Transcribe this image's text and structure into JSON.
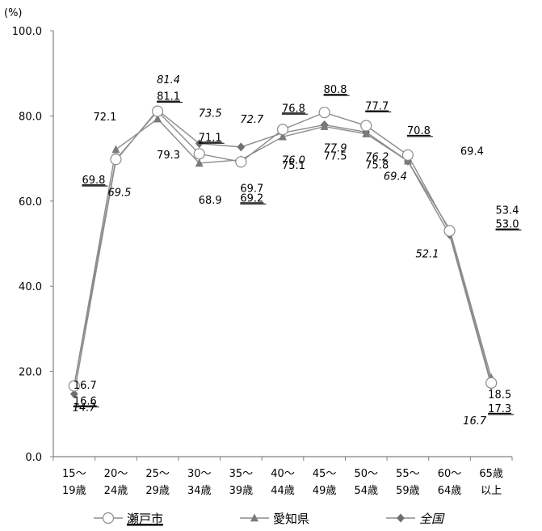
{
  "chart_data": {
    "type": "line",
    "unit_label": "(%)",
    "categories": [
      [
        "15～",
        "19歳"
      ],
      [
        "20～",
        "24歳"
      ],
      [
        "25～",
        "29歳"
      ],
      [
        "30～",
        "34歳"
      ],
      [
        "35～",
        "39歳"
      ],
      [
        "40～",
        "44歳"
      ],
      [
        "45～",
        "49歳"
      ],
      [
        "50～",
        "54歳"
      ],
      [
        "55～",
        "59歳"
      ],
      [
        "60～",
        "64歳"
      ],
      [
        "65歳",
        "以上"
      ]
    ],
    "ylim": [
      0,
      100
    ],
    "yticks": [
      "0.0",
      "20.0",
      "40.0",
      "60.0",
      "80.0",
      "100.0"
    ],
    "grid": false,
    "legend_position": "bottom",
    "series": [
      {
        "name": "瀬戸市",
        "marker": "circle",
        "color": "#8c8c8c",
        "label_style": "underline",
        "values": [
          16.6,
          69.8,
          81.1,
          71.1,
          69.2,
          76.8,
          80.8,
          77.7,
          70.8,
          53.0,
          17.3
        ],
        "labels": [
          "16.6",
          "69.8",
          "81.1",
          "71.1",
          "69.2",
          "76.8",
          "80.8",
          "77.7",
          "70.8",
          "53.0",
          "17.3"
        ]
      },
      {
        "name": "愛知県",
        "marker": "triangle",
        "color": "#8c8c8c",
        "label_style": "normal",
        "values": [
          16.7,
          72.1,
          79.3,
          68.9,
          69.7,
          75.1,
          77.5,
          75.8,
          69.4,
          53.4,
          18.5
        ],
        "labels": [
          "16.7",
          "72.1",
          "79.3",
          "68.9",
          "69.7",
          "75.1",
          "77.5",
          "75.8",
          "69.4",
          "53.4",
          "18.5"
        ]
      },
      {
        "name": "全国",
        "marker": "diamond",
        "color": "#8c8c8c",
        "label_style": "italic",
        "values": [
          14.7,
          69.5,
          81.4,
          73.5,
          72.7,
          76.0,
          77.9,
          76.2,
          69.4,
          52.1,
          16.7
        ],
        "labels": [
          "14.7",
          "69.5",
          "81.4",
          "73.5",
          "72.7",
          "76.0",
          "77.9",
          "76.2",
          "69.4",
          "52.1",
          "16.7"
        ]
      }
    ]
  }
}
